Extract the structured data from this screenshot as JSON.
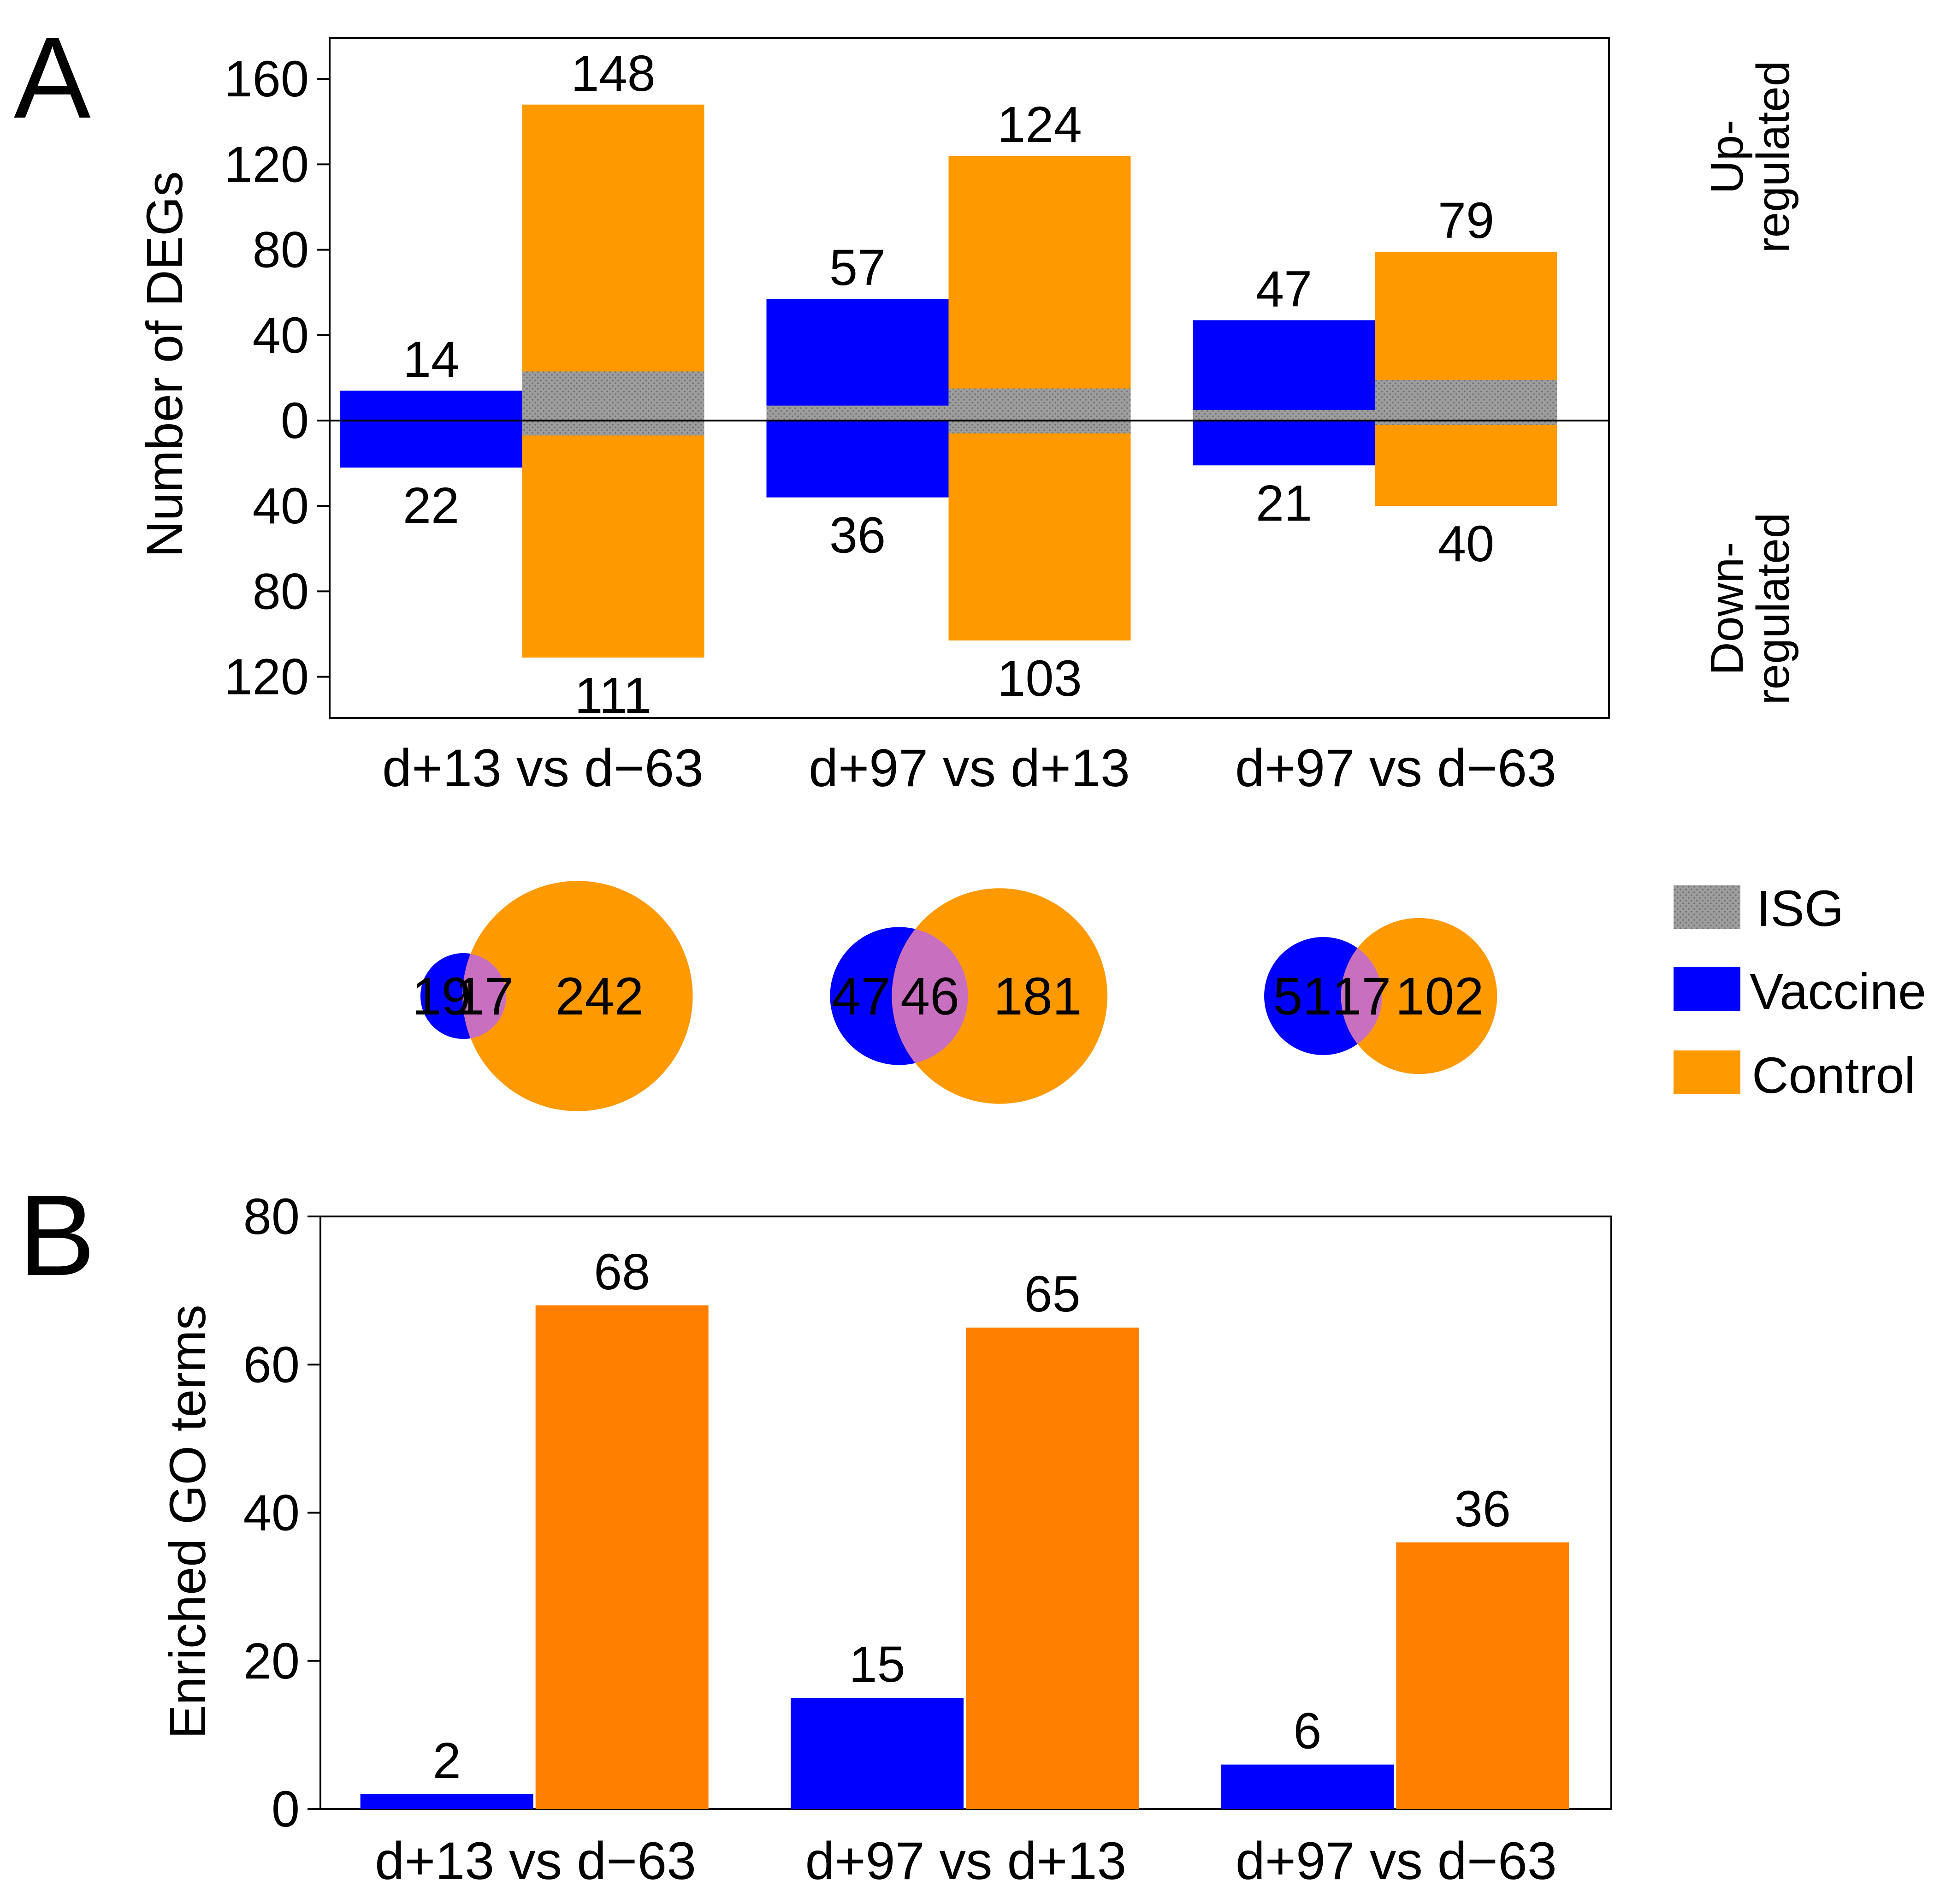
{
  "colors": {
    "vaccine": "#0000FF",
    "control_a": "#FF9900",
    "control_b": "#FF8000",
    "isg": "#9D9D9D",
    "overlap": "#C86FC0",
    "axis": "#000000"
  },
  "panel_a": {
    "letter": "A",
    "right_label_up": [
      "Up-",
      "regulated"
    ],
    "right_label_down": [
      "Down-",
      "regulated"
    ]
  },
  "panel_b": {
    "letter": "B"
  },
  "legend": {
    "isg": "ISG",
    "vaccine": "Vaccine",
    "control": "Control"
  },
  "chart_data": [
    {
      "type": "bar",
      "id": "panel-a-degs",
      "title": "",
      "ylabel": "Number of DEGs",
      "xlabel": "",
      "categories": [
        "d+13 vs d−63",
        "d+97 vs d+13",
        "d+97 vs d−63"
      ],
      "ylim_up": [
        0,
        180
      ],
      "ylim_down": [
        0,
        140
      ],
      "yticks_up": [
        0,
        40,
        80,
        120,
        160
      ],
      "yticks_down": [
        40,
        80,
        120
      ],
      "tick_labels_up": [
        "0",
        "40",
        "80",
        "120",
        "160"
      ],
      "tick_labels_down": [
        "40",
        "80",
        "120"
      ],
      "series": [
        {
          "name": "Vaccine",
          "up": [
            14,
            57,
            47
          ],
          "down": [
            22,
            36,
            21
          ],
          "isg_up": [
            0,
            7,
            5
          ],
          "isg_down": [
            0,
            0,
            0
          ],
          "up_labels": [
            "14",
            "57",
            "47"
          ],
          "down_labels": [
            "22",
            "36",
            "21"
          ]
        },
        {
          "name": "Control",
          "up": [
            148,
            124,
            79
          ],
          "down": [
            111,
            103,
            40
          ],
          "isg_up": [
            23,
            15,
            19
          ],
          "isg_down": [
            7,
            6,
            2
          ],
          "up_labels": [
            "148",
            "124",
            "79"
          ],
          "down_labels": [
            "111",
            "103",
            "40"
          ]
        }
      ]
    },
    {
      "type": "venn",
      "id": "panel-a-venn",
      "sets": [
        "Vaccine",
        "Control"
      ],
      "diagrams": [
        {
          "vaccine_only": "19",
          "overlap": "17",
          "control_only": "242"
        },
        {
          "vaccine_only": "47",
          "overlap": "46",
          "control_only": "181"
        },
        {
          "vaccine_only": "51",
          "overlap": "17",
          "control_only": "102"
        }
      ]
    },
    {
      "type": "bar",
      "id": "panel-b-go",
      "title": "",
      "ylabel": "Enriched GO terms",
      "xlabel": "",
      "categories": [
        "d+13 vs d−63",
        "d+97 vs d+13",
        "d+97 vs d−63"
      ],
      "ylim": [
        0,
        80
      ],
      "yticks": [
        0,
        20,
        40,
        60,
        80
      ],
      "tick_labels": [
        "0",
        "20",
        "40",
        "60",
        "80"
      ],
      "series": [
        {
          "name": "Vaccine",
          "values": [
            2,
            15,
            6
          ],
          "labels": [
            "2",
            "15",
            "6"
          ]
        },
        {
          "name": "Control",
          "values": [
            68,
            65,
            36
          ],
          "labels": [
            "68",
            "65",
            "36"
          ]
        }
      ]
    }
  ]
}
